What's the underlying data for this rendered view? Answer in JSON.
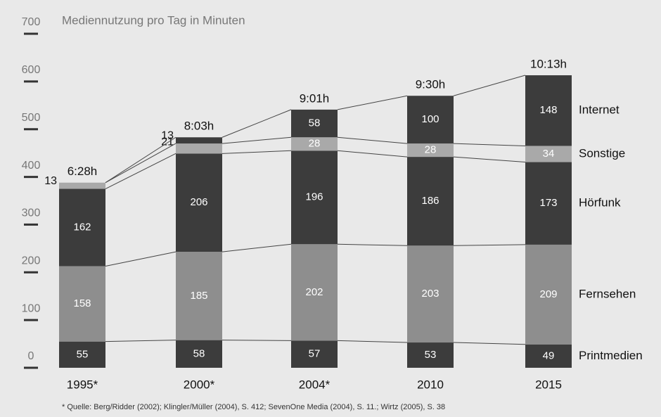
{
  "chart_data": {
    "type": "stacked_bar",
    "title": "Mediennutzung pro Tag in Minuten",
    "categories": [
      "1995*",
      "2000*",
      "2004*",
      "2010",
      "2015"
    ],
    "series": [
      {
        "name": "Printmedien",
        "color": "#3c3c3c",
        "values": [
          55,
          58,
          57,
          53,
          49
        ]
      },
      {
        "name": "Fernsehen",
        "color": "#8e8e8e",
        "values": [
          158,
          185,
          202,
          203,
          209
        ]
      },
      {
        "name": "Hörfunk",
        "color": "#3c3c3c",
        "values": [
          162,
          206,
          196,
          186,
          173
        ]
      },
      {
        "name": "Sonstige",
        "color": "#a9a9a9",
        "values": [
          13,
          21,
          28,
          28,
          34
        ]
      },
      {
        "name": "Internet",
        "color": "#3c3c3c",
        "values": [
          null,
          13,
          58,
          100,
          148
        ]
      }
    ],
    "total_labels": [
      "6:28h",
      "8:03h",
      "9:01h",
      "9:30h",
      "10:13h"
    ],
    "ylim": [
      0,
      700
    ],
    "yticks": [
      0,
      100,
      200,
      300,
      400,
      500,
      600,
      700
    ],
    "footnote": "* Quelle: Berg/Ridder (2002); Klingler/Müller (2004), S. 412; SevenOne Media (2004), S. 11.; Wirtz (2005), S. 38"
  }
}
